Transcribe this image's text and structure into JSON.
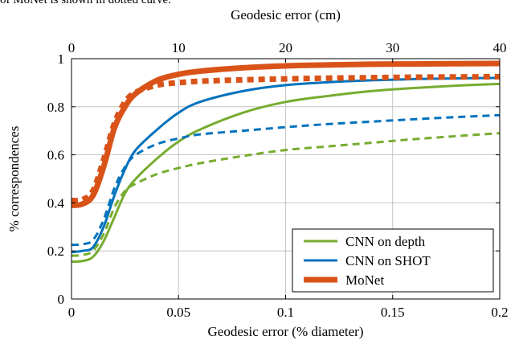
{
  "caption_fragment": "of MoNet is shown in dotted curve.",
  "chart_data": {
    "type": "line",
    "xlabel": "Geodesic error (% diameter)",
    "ylabel": "% correspondences",
    "top_xlabel": "Geodesic error (cm)",
    "xlim": [
      0,
      0.2
    ],
    "ylim": [
      0,
      1
    ],
    "top_xlim": [
      0,
      40
    ],
    "x_ticks": [
      "0",
      "0.05",
      "0.1",
      "0.15",
      "0.2"
    ],
    "x_tick_values": [
      0,
      0.05,
      0.1,
      0.15,
      0.2
    ],
    "y_ticks": [
      "0",
      "0.2",
      "0.4",
      "0.6",
      "0.8",
      "1"
    ],
    "y_tick_values": [
      0,
      0.2,
      0.4,
      0.6,
      0.8,
      1
    ],
    "top_x_ticks": [
      "0",
      "10",
      "20",
      "30",
      "40"
    ],
    "top_x_tick_values": [
      0,
      10,
      20,
      30,
      40
    ],
    "grid": true,
    "legend_position": "bottom-right",
    "x": [
      0,
      0.005,
      0.01,
      0.015,
      0.02,
      0.025,
      0.03,
      0.04,
      0.05,
      0.06,
      0.08,
      0.1,
      0.12,
      0.14,
      0.16,
      0.18,
      0.2
    ],
    "series": [
      {
        "name": "CNN on depth",
        "color": "#77ac30",
        "style": "solid",
        "values": [
          0.155,
          0.158,
          0.175,
          0.24,
          0.34,
          0.44,
          0.5,
          0.585,
          0.655,
          0.705,
          0.775,
          0.82,
          0.845,
          0.865,
          0.878,
          0.888,
          0.895
        ]
      },
      {
        "name": "CNN on depth (dotted)",
        "color": "#77ac30",
        "style": "dotted",
        "values": [
          0.18,
          0.183,
          0.2,
          0.27,
          0.38,
          0.45,
          0.48,
          0.52,
          0.545,
          0.565,
          0.595,
          0.62,
          0.635,
          0.65,
          0.665,
          0.678,
          0.69
        ]
      },
      {
        "name": "CNN on SHOT",
        "color": "#0072bd",
        "style": "solid",
        "values": [
          0.195,
          0.2,
          0.215,
          0.3,
          0.43,
          0.54,
          0.62,
          0.705,
          0.775,
          0.82,
          0.865,
          0.89,
          0.902,
          0.91,
          0.915,
          0.918,
          0.92
        ]
      },
      {
        "name": "CNN on SHOT (dotted)",
        "color": "#0072bd",
        "style": "dotted",
        "values": [
          0.225,
          0.228,
          0.245,
          0.33,
          0.46,
          0.55,
          0.6,
          0.645,
          0.668,
          0.685,
          0.7,
          0.715,
          0.728,
          0.738,
          0.748,
          0.757,
          0.765
        ]
      },
      {
        "name": "MoNet",
        "color": "#d95319",
        "style": "solid",
        "values": [
          0.39,
          0.395,
          0.43,
          0.55,
          0.71,
          0.8,
          0.855,
          0.91,
          0.935,
          0.948,
          0.962,
          0.97,
          0.974,
          0.977,
          0.978,
          0.979,
          0.98
        ]
      },
      {
        "name": "MoNet (dotted)",
        "color": "#d95319",
        "style": "dotted",
        "values": [
          0.41,
          0.413,
          0.45,
          0.58,
          0.73,
          0.82,
          0.86,
          0.89,
          0.9,
          0.906,
          0.912,
          0.916,
          0.919,
          0.921,
          0.923,
          0.924,
          0.925
        ]
      }
    ],
    "legend": [
      {
        "label": "CNN on depth",
        "color": "#77ac30"
      },
      {
        "label": "CNN on SHOT",
        "color": "#0072bd"
      },
      {
        "label": "MoNet",
        "color": "#d95319"
      }
    ]
  }
}
